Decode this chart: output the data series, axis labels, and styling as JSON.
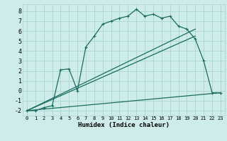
{
  "xlabel": "Humidex (Indice chaleur)",
  "bg_color": "#ceecea",
  "grid_color": "#a8d5d0",
  "line_color": "#1a6b60",
  "xlim": [
    -0.5,
    23.5
  ],
  "ylim": [
    -2.5,
    8.7
  ],
  "xticks": [
    0,
    1,
    2,
    3,
    4,
    5,
    6,
    7,
    8,
    9,
    10,
    11,
    12,
    13,
    14,
    15,
    16,
    17,
    18,
    19,
    20,
    21,
    22,
    23
  ],
  "yticks": [
    -2,
    -1,
    0,
    1,
    2,
    3,
    4,
    5,
    6,
    7,
    8
  ],
  "series1_x": [
    0,
    1,
    2,
    3,
    4,
    5,
    6,
    7,
    8,
    9,
    10,
    11,
    12,
    13,
    14,
    15,
    16,
    17,
    18,
    19,
    20,
    21,
    22,
    23
  ],
  "series1_y": [
    -2.0,
    -2.0,
    -1.7,
    -1.5,
    2.1,
    2.2,
    0.0,
    4.4,
    5.5,
    6.7,
    7.0,
    7.3,
    7.5,
    8.2,
    7.5,
    7.7,
    7.3,
    7.5,
    6.5,
    6.2,
    5.2,
    3.0,
    -0.2,
    -0.2
  ],
  "series2_x": [
    0,
    23
  ],
  "series2_y": [
    -2.0,
    -0.2
  ],
  "series3_x": [
    0,
    20
  ],
  "series3_y": [
    -2.0,
    6.2
  ],
  "series4_x": [
    0,
    20
  ],
  "series4_y": [
    -2.0,
    5.5
  ],
  "marker_size": 3.5,
  "line_width": 0.9
}
